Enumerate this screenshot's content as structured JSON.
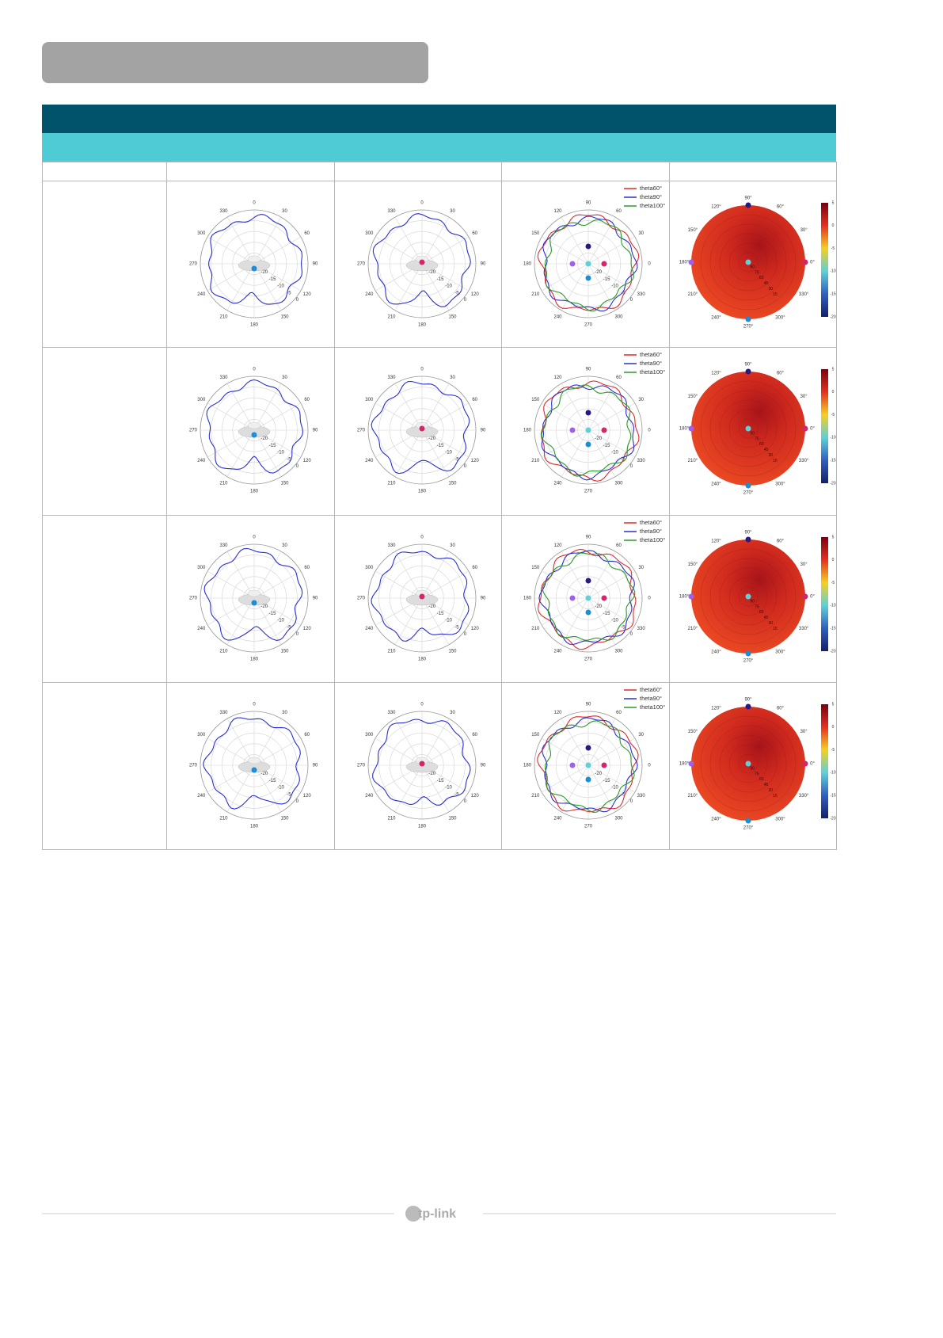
{
  "polar": {
    "angle_labels": [
      "0",
      "30",
      "60",
      "90",
      "120",
      "150",
      "180",
      "210",
      "240",
      "270",
      "300",
      "330"
    ],
    "radial_labels": [
      "-20",
      "-15",
      "-10",
      "-5",
      "0"
    ]
  },
  "legend": [
    "theta60°",
    "theta90°",
    "theta100°"
  ],
  "heatmap": {
    "angle_labels": [
      "0°",
      "30°",
      "60°",
      "90°",
      "120°",
      "150°",
      "180°",
      "210°",
      "240°",
      "270°",
      "300°",
      "330°"
    ],
    "radial_labels": [
      "90",
      "75",
      "60",
      "45",
      "30",
      "15"
    ]
  },
  "colorbar": [
    "5",
    "0",
    "-5",
    "-10",
    "-15",
    "-20"
  ],
  "footer": {
    "logo": "tp-link"
  }
}
